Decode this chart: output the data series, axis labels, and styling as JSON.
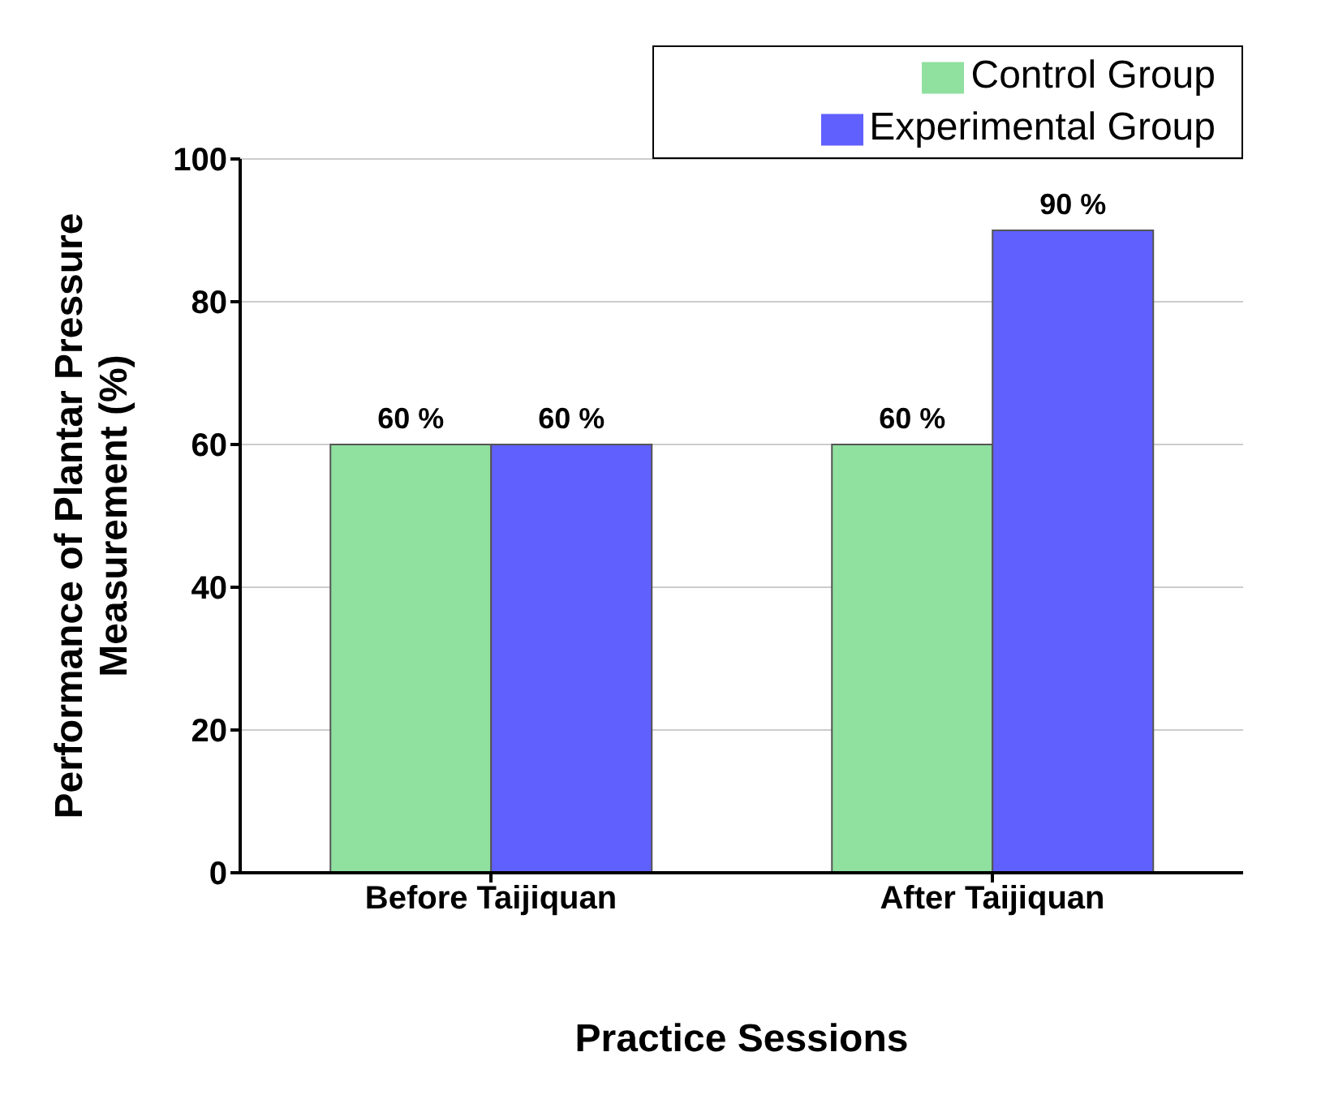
{
  "chart_data": {
    "type": "bar",
    "xlabel": "Practice Sessions",
    "ylabel": "Performance of Plantar Pressure Measurement (%)",
    "categories": [
      "Before Taijiquan",
      "After Taijiquan"
    ],
    "series": [
      {
        "name": "Control Group",
        "color": "#90e0a0",
        "values": [
          60,
          60
        ],
        "value_labels": [
          "60 %",
          "60 %"
        ]
      },
      {
        "name": "Experimental Group",
        "color": "#6060ff",
        "values": [
          60,
          90
        ],
        "value_labels": [
          "60 %",
          "90 %"
        ]
      }
    ],
    "ylim": [
      0,
      100
    ],
    "yticks": [
      0,
      20,
      40,
      60,
      80,
      100
    ],
    "grid": "y",
    "legend": "top right"
  }
}
